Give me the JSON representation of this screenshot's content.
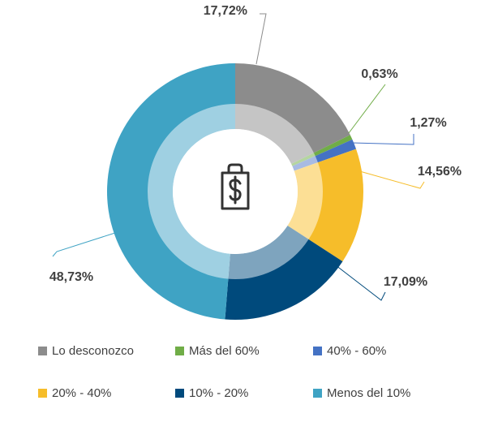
{
  "chart_data": {
    "type": "pie",
    "title": "",
    "categories": [
      "Lo desconozco",
      "Más del 60%",
      "40% - 60%",
      "20% - 40%",
      "10% - 20%",
      "Menos del 10%"
    ],
    "values": [
      17.72,
      0.63,
      1.27,
      14.56,
      17.09,
      48.73
    ],
    "value_labels": [
      "17,72%",
      "0,63%",
      "1,27%",
      "14,56%",
      "17,09%",
      "48,73%"
    ],
    "colors": [
      "#8c8c8c",
      "#70ad47",
      "#4472c4",
      "#f6bd2a",
      "#004a7c",
      "#3fa3c4"
    ],
    "inner_colors": [
      "#c5c5c5",
      "#b5d5a0",
      "#a8bbe3",
      "#fcdf95",
      "#7ea4be",
      "#9fd0e2"
    ],
    "legend_position": "bottom",
    "center_icon": "clipboard-dollar-icon"
  }
}
